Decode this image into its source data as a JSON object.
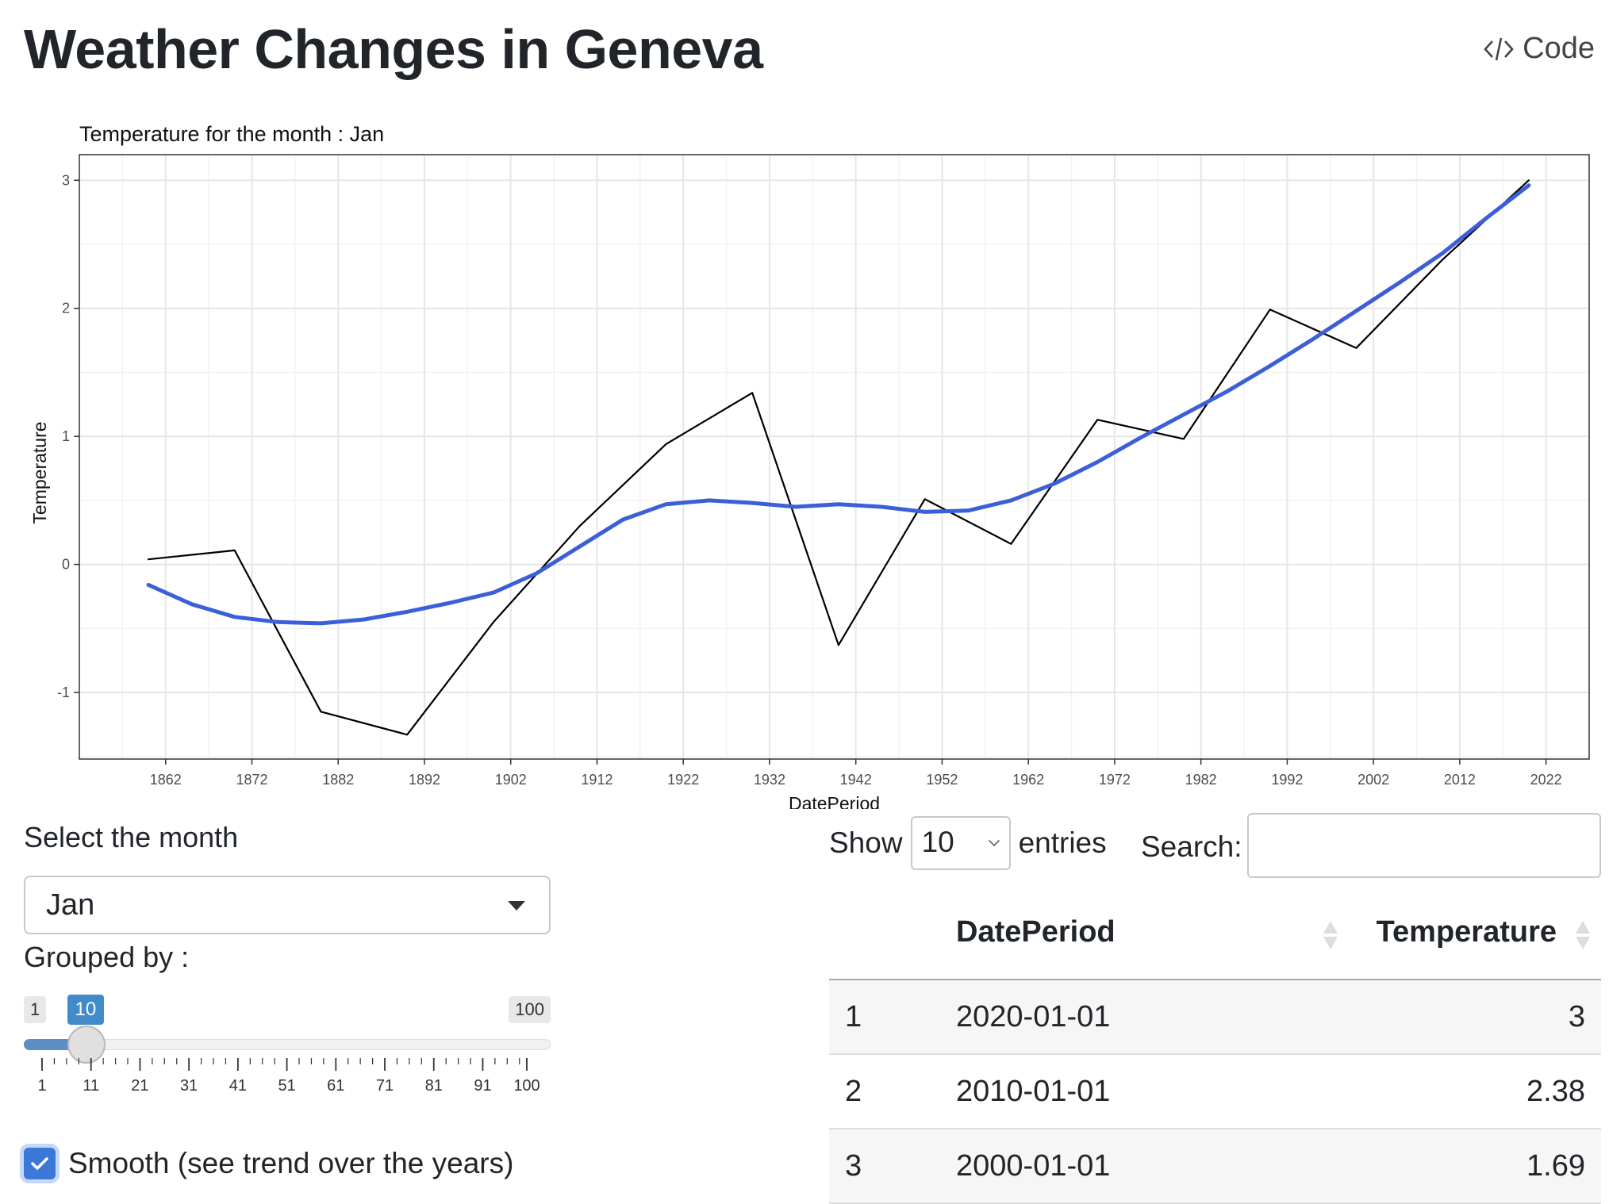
{
  "header": {
    "title": "Weather Changes in Geneva",
    "code_label": "Code"
  },
  "chart_data": {
    "type": "line",
    "title": "Temperature for the month : Jan",
    "xlabel": "DatePeriod",
    "ylabel": "Temperature",
    "x_ticks": [
      1862,
      1872,
      1882,
      1892,
      1902,
      1912,
      1922,
      1932,
      1942,
      1952,
      1962,
      1972,
      1982,
      1992,
      2002,
      2012,
      2022
    ],
    "y_ticks": [
      -1,
      0,
      1,
      2,
      3
    ],
    "xlim": [
      1852,
      2027
    ],
    "ylim": [
      -1.52,
      3.2
    ],
    "grid": true,
    "series": [
      {
        "style": "raw",
        "color": "#000000",
        "x": [
          1860,
          1870,
          1880,
          1890,
          1900,
          1910,
          1920,
          1930,
          1940,
          1950,
          1960,
          1970,
          1980,
          1990,
          2000,
          2010,
          2020
        ],
        "values": [
          0.04,
          0.11,
          -1.15,
          -1.33,
          -0.45,
          0.3,
          0.94,
          1.34,
          -0.63,
          0.51,
          0.16,
          1.13,
          0.98,
          1.99,
          1.69,
          2.38,
          3.0
        ]
      },
      {
        "style": "smooth",
        "color": "#3b5fd9",
        "x": [
          1860,
          1865,
          1870,
          1875,
          1880,
          1885,
          1890,
          1895,
          1900,
          1905,
          1910,
          1915,
          1920,
          1925,
          1930,
          1935,
          1940,
          1945,
          1950,
          1955,
          1960,
          1965,
          1970,
          1975,
          1980,
          1985,
          1990,
          1995,
          2000,
          2005,
          2010,
          2015,
          2020
        ],
        "values": [
          -0.16,
          -0.31,
          -0.41,
          -0.45,
          -0.46,
          -0.43,
          -0.37,
          -0.3,
          -0.22,
          -0.07,
          0.14,
          0.35,
          0.47,
          0.5,
          0.48,
          0.45,
          0.47,
          0.45,
          0.41,
          0.42,
          0.5,
          0.63,
          0.8,
          0.99,
          1.17,
          1.35,
          1.55,
          1.76,
          1.98,
          2.2,
          2.43,
          2.7,
          2.96
        ]
      }
    ]
  },
  "controls": {
    "month_label": "Select the month",
    "month_value": "Jan",
    "group_label": "Grouped by :",
    "slider": {
      "min": 1,
      "max": 100,
      "value": 10,
      "min_label": "1",
      "max_label": "100",
      "value_label": "10",
      "tick_labels": [
        "1",
        "11",
        "21",
        "31",
        "41",
        "51",
        "61",
        "71",
        "81",
        "91",
        "100"
      ]
    },
    "smooth_label": "Smooth (see trend over the years)",
    "smooth_checked": true
  },
  "table": {
    "show_label": "Show",
    "length_value": "10",
    "entries_label": "entries",
    "search_label": "Search:",
    "search_value": "",
    "columns": [
      "",
      "DatePeriod",
      "Temperature"
    ],
    "rows": [
      {
        "idx": "1",
        "date": "2020-01-01",
        "temp": "3"
      },
      {
        "idx": "2",
        "date": "2010-01-01",
        "temp": "2.38"
      },
      {
        "idx": "3",
        "date": "2000-01-01",
        "temp": "1.69"
      }
    ]
  }
}
